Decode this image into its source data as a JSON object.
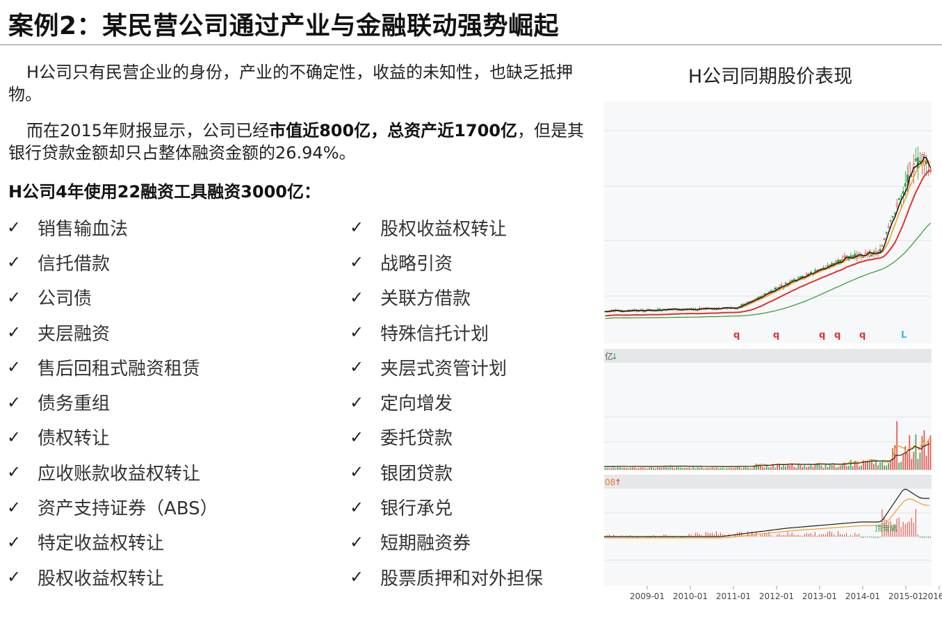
{
  "header": {
    "title": "案例2：某民营公司通过产业与金融联动强势崛起"
  },
  "intro": {
    "p1": "H公司只有民营企业的身份，产业的不确定性，收益的未知性，也缺乏抵押物。",
    "p2_a": "而在2015年财报显示，公司已经",
    "p2_bold": "市值近800亿，总资产近1700亿",
    "p2_b": "，但是其银行贷款金额却只占整体融资金额的26.94%。"
  },
  "tools": {
    "heading": "H公司4年使用22融资工具融资3000亿：",
    "check_glyph": "✓",
    "left": [
      "销售输血法",
      "信托借款",
      "公司债",
      "夹层融资",
      "售后回租式融资租赁",
      "债务重组",
      "债权转让",
      "应收账款收益权转让",
      "资产支持证券（ABS）",
      "特定收益权转让",
      "股权收益权转让"
    ],
    "right": [
      "股权收益权转让",
      "战略引资",
      "关联方借款",
      "特殊信托计划",
      "夹层式资管计划",
      "定向增发",
      "委托贷款",
      "银团贷款",
      "银行承兑",
      "短期融资券",
      "股票质押和对外担保"
    ]
  },
  "stock_chart": {
    "title": "H公司同期股价表现",
    "volume_label": "亿",
    "macd_label": "08",
    "macd_annotation": "顶背离",
    "markers": [
      "q",
      "q",
      "q",
      "q",
      "q",
      "L"
    ],
    "x_ticks": [
      "2009-01",
      "2010-01",
      "2011-01",
      "2012-01",
      "2013-01",
      "2014-01",
      "2015-01",
      "2016"
    ],
    "colors": {
      "up": "#e0413a",
      "down": "#2e9d4a",
      "ma5": "#1a1a1a",
      "ma10": "#f0a020",
      "ma20": "#e03030",
      "ma60": "#2a9a2a",
      "marker_q": "#e03030",
      "marker_l": "#35b8e0"
    }
  }
}
